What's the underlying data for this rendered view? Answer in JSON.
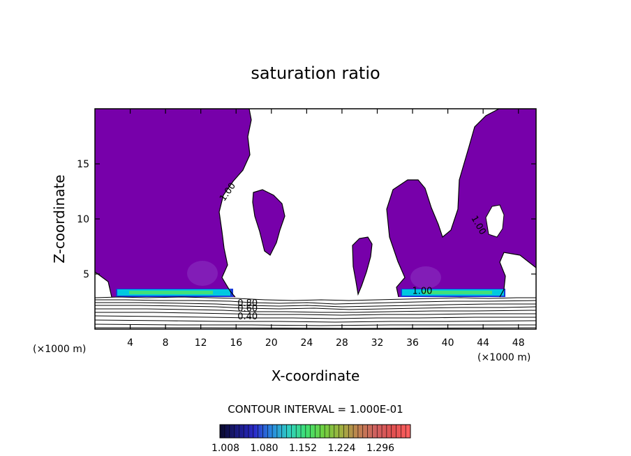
{
  "chart_data": {
    "type": "contour",
    "title": "saturation ratio",
    "xlabel": "X-coordinate",
    "ylabel": "Z-coordinate",
    "x_unit": "(×1000 m)",
    "y_unit": "(×1000 m)",
    "xlim": [
      0,
      50
    ],
    "ylim": [
      0,
      20
    ],
    "x_ticks": [
      4,
      8,
      12,
      16,
      20,
      24,
      28,
      32,
      36,
      40,
      44,
      48
    ],
    "y_ticks": [
      5,
      10,
      15
    ],
    "contour_interval_text": "CONTOUR INTERVAL = 1.000E-01",
    "contour_labels": [
      {
        "text": "1.00",
        "x": 15.3,
        "z": 12.3,
        "angle": -55
      },
      {
        "text": "1.00",
        "x": 43.2,
        "z": 9.3,
        "angle": 60
      },
      {
        "text": "1.00",
        "x": 37.1,
        "z": 3.2,
        "angle": 0
      },
      {
        "text": "0.80",
        "x": 17.3,
        "z": 2.1,
        "angle": 0
      },
      {
        "text": "0.60",
        "x": 17.3,
        "z": 1.6,
        "angle": 0
      },
      {
        "text": "0.40",
        "x": 17.3,
        "z": 0.9,
        "angle": 0
      }
    ],
    "colorbar": {
      "tick_labels": [
        "1.008",
        "1.080",
        "1.152",
        "1.224",
        "1.296"
      ],
      "colors": [
        "#0a0a2a",
        "#1a1a80",
        "#2a2ac8",
        "#2a8ae0",
        "#30d0c0",
        "#40e070",
        "#70d040",
        "#a0b040",
        "#c08050",
        "#d06060",
        "#e05050",
        "#ff6060"
      ]
    },
    "colors": {
      "supersaturated": "#7700aa",
      "light_purple": "#8a30c0",
      "band_cyan": "#00c8e0",
      "band_green": "#40e07a",
      "band_blue": "#1838d8"
    }
  }
}
